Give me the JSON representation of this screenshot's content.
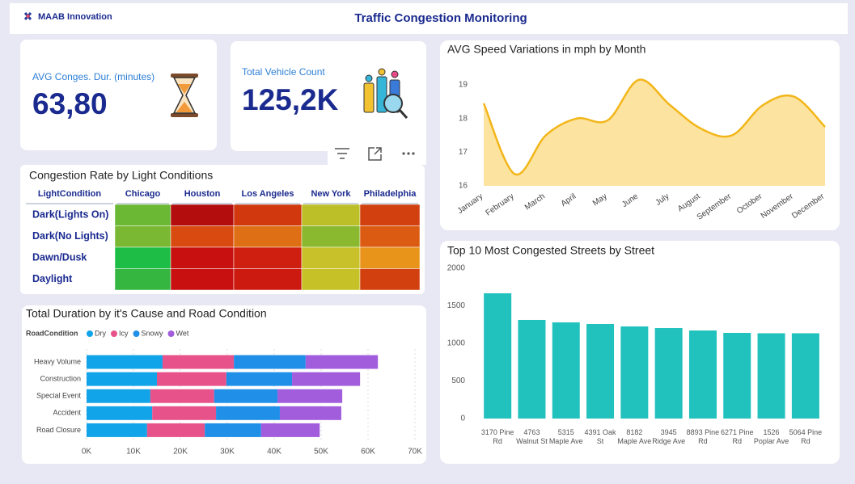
{
  "header": {
    "brand": "MAAB Innovation",
    "title": "Traffic Congestion Monitoring"
  },
  "kpis": [
    {
      "label": "AVG Conges. Dur. (minutes)",
      "value": "63,80"
    },
    {
      "label": "Total Vehicle Count",
      "value": "125,2K"
    }
  ],
  "heatmap": {
    "title": "Congestion Rate by Light Conditions",
    "corner": "LightCondition",
    "columns": [
      "Chicago",
      "Houston",
      "Los Angeles",
      "New York",
      "Philadelphia"
    ],
    "rows": [
      {
        "label": "Dark(Lights On)",
        "colors": [
          "#6ab833",
          "#b40d0d",
          "#d1380e",
          "#bdbf28",
          "#d2400f"
        ]
      },
      {
        "label": "Dark(No Lights)",
        "colors": [
          "#7ab834",
          "#d84a10",
          "#df6f14",
          "#8ab92f",
          "#dc5b13"
        ]
      },
      {
        "label": "Dawn/Dusk",
        "colors": [
          "#1ebd45",
          "#c81010",
          "#cf1f10",
          "#c9c12a",
          "#e8931a"
        ]
      },
      {
        "label": "Daylight",
        "colors": [
          "#35b640",
          "#c81010",
          "#cc1a10",
          "#c6c126",
          "#d2400f"
        ]
      }
    ]
  },
  "chart_data": [
    {
      "type": "area",
      "title": "AVG Speed Variations in mph by Month",
      "categories": [
        "January",
        "February",
        "March",
        "April",
        "May",
        "June",
        "July",
        "August",
        "September",
        "October",
        "November",
        "December"
      ],
      "values": [
        18.45,
        16.35,
        17.5,
        18.0,
        17.95,
        19.15,
        18.4,
        17.7,
        17.5,
        18.4,
        18.65,
        17.75
      ],
      "color": "#f2b619",
      "fill": "#fde3a0",
      "ylim": [
        16,
        19.6
      ],
      "yticks": [
        16,
        17,
        18,
        19
      ]
    },
    {
      "type": "hbar-stacked",
      "title": "Total Duration by it's Cause and Road Condition",
      "legend_title": "RoadCondition",
      "categories": [
        "Heavy Volume",
        "Construction",
        "Special Event",
        "Accident",
        "Road Closure"
      ],
      "series": [
        {
          "name": "Dry",
          "color": "#12a4e8",
          "values": [
            16200,
            15000,
            13600,
            14000,
            12900
          ]
        },
        {
          "name": "Icy",
          "color": "#e8528a",
          "values": [
            15200,
            14800,
            13600,
            13600,
            12300
          ]
        },
        {
          "name": "Snowy",
          "color": "#1f8fe8",
          "values": [
            15300,
            14000,
            13500,
            13600,
            12000
          ]
        },
        {
          "name": "Wet",
          "color": "#a25ddc",
          "values": [
            15400,
            14500,
            13800,
            13100,
            12500
          ]
        }
      ],
      "xlim": [
        0,
        70000
      ],
      "xticks": [
        {
          "value": 0,
          "label": "0K"
        },
        {
          "value": 10000,
          "label": "10K"
        },
        {
          "value": 20000,
          "label": "20K"
        },
        {
          "value": 30000,
          "label": "30K"
        },
        {
          "value": 40000,
          "label": "40K"
        },
        {
          "value": 50000,
          "label": "50K"
        },
        {
          "value": 60000,
          "label": "60K"
        },
        {
          "value": 70000,
          "label": "70K"
        }
      ],
      "grid": true
    },
    {
      "type": "bar",
      "title": "Top 10 Most Congested Streets by Street",
      "categories": [
        "3170 Pine Rd",
        "4763 Walnut St",
        "5315 Maple Ave",
        "4391 Oak St",
        "8182 Maple Ave",
        "3945 Ridge Ave",
        "8893 Pine Rd",
        "6271 Pine Rd",
        "1526 Poplar Ave",
        "5064 Pine Rd"
      ],
      "values": [
        1667,
        1312,
        1280,
        1258,
        1226,
        1204,
        1172,
        1140,
        1135,
        1135
      ],
      "color": "#21c1bd",
      "ylim": [
        0,
        2000
      ],
      "yticks": [
        0,
        500,
        1000,
        1500,
        2000
      ]
    }
  ]
}
